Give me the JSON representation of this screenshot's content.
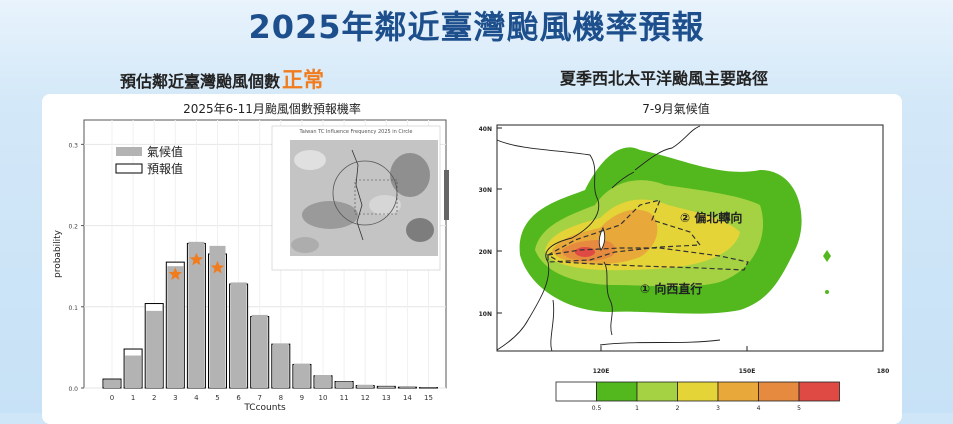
{
  "page": {
    "title": "2025年鄰近臺灣颱風機率預報",
    "left_heading": "預估鄰近臺灣颱風個數",
    "left_heading_highlight": "正常",
    "right_heading": "夏季西北太平洋颱風主要路徑"
  },
  "chart_data": [
    {
      "type": "bar",
      "title": "2025年6-11月颱風個數預報機率",
      "xlabel": "TCcounts",
      "ylabel": "probability",
      "ylim": [
        0,
        0.33
      ],
      "yticks": [
        "0.0",
        "0.1",
        "0.2",
        "0.3"
      ],
      "categories": [
        "0",
        "1",
        "2",
        "3",
        "4",
        "5",
        "6",
        "7",
        "8",
        "9",
        "10",
        "11",
        "12",
        "13",
        "14",
        "15"
      ],
      "series": [
        {
          "name": "氣候值",
          "color": "#b3b3b3",
          "values": [
            0.01,
            0.04,
            0.095,
            0.15,
            0.18,
            0.175,
            0.13,
            0.09,
            0.055,
            0.03,
            0.016,
            0.008,
            0.004,
            0.002,
            0.001,
            0.0005
          ]
        },
        {
          "name": "預報值",
          "color": "#000000",
          "values": [
            0.011,
            0.048,
            0.104,
            0.155,
            0.178,
            0.165,
            0.128,
            0.088,
            0.054,
            0.029,
            0.015,
            0.008,
            0.003,
            0.002,
            0.001,
            0.0005
          ]
        }
      ],
      "highlight_stars": {
        "color": "#f07c1e",
        "categories": [
          "3",
          "4",
          "5"
        ],
        "values": [
          0.14,
          0.158,
          0.148
        ]
      },
      "legend_position": "top-left",
      "grid": true,
      "inset_title": "Taiwan TC Influence Frequency 2025 in Circle"
    },
    {
      "type": "heatmap",
      "title": "7-9月氣候值",
      "x_ticks": [
        "120E",
        "150E",
        "180"
      ],
      "y_ticks": [
        "40N",
        "30N",
        "20N",
        "10N"
      ],
      "colorbar_ticks": [
        "0.5",
        "1",
        "2",
        "3",
        "4",
        "5"
      ],
      "colorbar_colors": [
        "#ffffff",
        "#52b81e",
        "#a4d242",
        "#e4d438",
        "#e8a83a",
        "#e58a3e",
        "#e04a44"
      ],
      "track_labels": [
        "② 偏北轉向",
        "① 向西直行"
      ]
    }
  ]
}
